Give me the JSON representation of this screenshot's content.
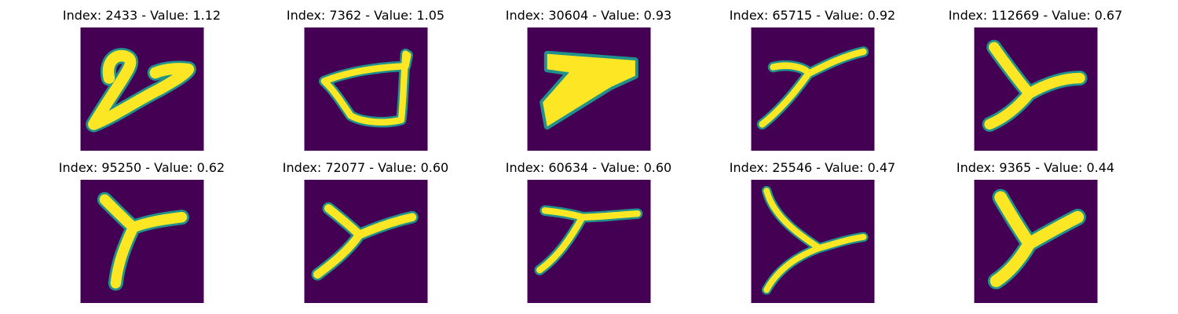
{
  "colors": {
    "background": "#440154",
    "stroke_core": "#fde725",
    "stroke_edge": "#21918c"
  },
  "panels": [
    {
      "title": "Index: 2433 - Value: 1.12"
    },
    {
      "title": "Index: 7362 - Value: 1.05"
    },
    {
      "title": "Index: 30604 - Value: 0.93"
    },
    {
      "title": "Index: 65715 - Value: 0.92"
    },
    {
      "title": "Index: 112669 - Value: 0.67"
    },
    {
      "title": "Index: 95250 - Value: 0.62"
    },
    {
      "title": "Index: 72077 - Value: 0.60"
    },
    {
      "title": "Index: 60634 - Value: 0.60"
    },
    {
      "title": "Index: 25546 - Value: 0.47"
    },
    {
      "title": "Index: 9365 - Value: 0.44"
    }
  ]
}
